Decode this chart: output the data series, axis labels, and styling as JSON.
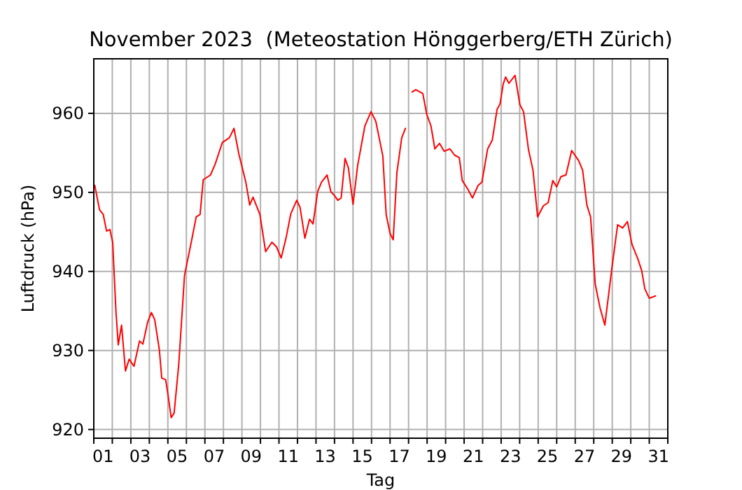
{
  "chart_data": {
    "type": "line",
    "title": "November 2023  (Meteostation Hönggerberg/ETH Zürich)",
    "xlabel": "Tag",
    "ylabel": "Luftdruck (hPa)",
    "xlim": [
      1,
      32
    ],
    "ylim": [
      918.9,
      966.9
    ],
    "xticks": [
      {
        "value": 1,
        "label": null
      },
      {
        "value": 1.5,
        "label": "01"
      },
      {
        "value": 2,
        "label": null
      },
      {
        "value": 3,
        "label": null
      },
      {
        "value": 3.5,
        "label": "03"
      },
      {
        "value": 4,
        "label": null
      },
      {
        "value": 5,
        "label": null
      },
      {
        "value": 5.5,
        "label": "05"
      },
      {
        "value": 6,
        "label": null
      },
      {
        "value": 7,
        "label": null
      },
      {
        "value": 7.5,
        "label": "07"
      },
      {
        "value": 8,
        "label": null
      },
      {
        "value": 9,
        "label": null
      },
      {
        "value": 9.5,
        "label": "09"
      },
      {
        "value": 10,
        "label": null
      },
      {
        "value": 11,
        "label": null
      },
      {
        "value": 11.5,
        "label": "11"
      },
      {
        "value": 12,
        "label": null
      },
      {
        "value": 13,
        "label": null
      },
      {
        "value": 13.5,
        "label": "13"
      },
      {
        "value": 14,
        "label": null
      },
      {
        "value": 15,
        "label": null
      },
      {
        "value": 15.5,
        "label": "15"
      },
      {
        "value": 16,
        "label": null
      },
      {
        "value": 17,
        "label": null
      },
      {
        "value": 17.5,
        "label": "17"
      },
      {
        "value": 18,
        "label": null
      },
      {
        "value": 19,
        "label": null
      },
      {
        "value": 19.5,
        "label": "19"
      },
      {
        "value": 20,
        "label": null
      },
      {
        "value": 21,
        "label": null
      },
      {
        "value": 21.5,
        "label": "21"
      },
      {
        "value": 22,
        "label": null
      },
      {
        "value": 23,
        "label": null
      },
      {
        "value": 23.5,
        "label": "23"
      },
      {
        "value": 24,
        "label": null
      },
      {
        "value": 25,
        "label": null
      },
      {
        "value": 25.5,
        "label": "25"
      },
      {
        "value": 26,
        "label": null
      },
      {
        "value": 27,
        "label": null
      },
      {
        "value": 27.5,
        "label": "27"
      },
      {
        "value": 28,
        "label": null
      },
      {
        "value": 29,
        "label": null
      },
      {
        "value": 29.5,
        "label": "29"
      },
      {
        "value": 30,
        "label": null
      },
      {
        "value": 31,
        "label": null
      },
      {
        "value": 31.5,
        "label": "31"
      },
      {
        "value": 32,
        "label": null
      }
    ],
    "yticks": [
      920,
      930,
      940,
      950,
      960
    ],
    "grid": true,
    "marker": "none",
    "line_style": "solid",
    "series": [
      {
        "color": "#ff0000",
        "x": [
          1.05,
          1.31,
          1.51,
          1.69,
          1.87,
          2.02,
          2.2,
          2.32,
          2.5,
          2.71,
          2.91,
          3.17,
          3.47,
          3.65,
          3.91,
          4.11,
          4.29,
          4.54,
          4.67,
          4.88,
          5.0,
          5.18,
          5.34,
          5.59,
          5.9,
          6.28,
          6.53,
          6.74,
          6.91,
          7.3,
          7.56,
          7.94,
          8.32,
          8.57,
          8.83,
          9.21,
          9.42,
          9.6,
          9.97,
          10.28,
          10.62,
          10.87,
          11.12,
          11.38,
          11.64,
          11.96,
          12.14,
          12.4,
          12.65,
          12.84,
          13.09,
          13.3,
          13.6,
          13.8,
          14.0,
          14.18,
          14.36,
          14.57,
          14.75,
          15.0,
          15.25,
          15.64,
          15.97,
          16.23,
          16.61,
          16.79,
          17.0,
          17.17,
          17.37,
          17.63,
          17.83,
          18.0,
          18.19,
          18.39,
          18.77,
          18.98,
          19.21,
          19.42,
          19.67,
          19.92,
          20.23,
          20.49,
          20.74,
          20.9,
          21.2,
          21.45,
          21.76,
          21.96,
          22.27,
          22.52,
          22.78,
          22.94,
          23.11,
          23.24,
          23.42,
          23.75,
          24.01,
          24.21,
          24.47,
          24.72,
          24.97,
          25.28,
          25.54,
          25.79,
          26.0,
          26.23,
          26.5,
          26.81,
          27.19,
          27.4,
          27.63,
          27.83,
          28.08,
          28.34,
          28.6,
          28.98,
          29.29,
          29.56,
          29.82,
          30.07,
          30.38,
          30.59,
          30.76,
          31.0,
          31.34
        ],
        "values": [
          950.9,
          947.8,
          947.2,
          945.1,
          945.3,
          943.7,
          934.8,
          930.7,
          933.2,
          927.4,
          928.9,
          928.0,
          931.2,
          930.8,
          933.6,
          934.8,
          933.9,
          930.1,
          926.5,
          926.3,
          924.5,
          921.5,
          922.1,
          928.3,
          939.5,
          943.9,
          946.9,
          947.2,
          951.6,
          952.2,
          953.6,
          956.3,
          956.9,
          958.1,
          954.9,
          951.3,
          948.4,
          949.4,
          947.2,
          942.5,
          943.7,
          943.1,
          941.7,
          944.2,
          947.3,
          949.0,
          948.1,
          944.2,
          946.6,
          946.0,
          950.1,
          951.3,
          952.2,
          950.1,
          949.6,
          949.0,
          949.3,
          954.3,
          953.1,
          948.5,
          953.4,
          958.4,
          960.2,
          959.0,
          954.6,
          947.2,
          944.8,
          944.0,
          952.5,
          956.9,
          958.1,
          null,
          962.7,
          963.0,
          962.5,
          959.9,
          958.4,
          955.5,
          956.2,
          955.2,
          955.5,
          954.7,
          954.4,
          951.5,
          950.4,
          949.3,
          950.9,
          951.3,
          955.5,
          956.6,
          960.5,
          961.2,
          963.7,
          964.6,
          963.8,
          964.8,
          961.1,
          960.2,
          955.5,
          952.8,
          946.9,
          948.3,
          948.7,
          951.5,
          950.7,
          952.0,
          952.2,
          955.3,
          954.0,
          952.8,
          948.4,
          946.9,
          938.4,
          935.4,
          933.2,
          940.4,
          945.9,
          945.5,
          946.3,
          943.4,
          941.6,
          940.1,
          937.8,
          936.6,
          936.9
        ]
      }
    ]
  }
}
